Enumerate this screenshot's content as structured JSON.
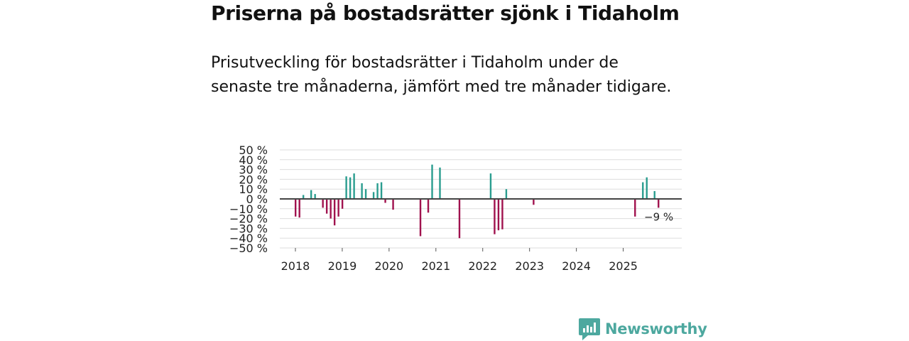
{
  "headline": "Priserna på bostadsrätter sjönk i Tidaholm",
  "subtitle": "Prisutveckling för bostadsrätter i Tidaholm under de senaste tre månaderna, jämfört med tre månader tidigare.",
  "brand": {
    "name": "Newsworthy",
    "color": "#4da89f"
  },
  "colors": {
    "positive": "#2a9d8f",
    "negative": "#a0124e",
    "grid": "#dddddd",
    "zero": "#444444"
  },
  "chart_data": {
    "type": "bar",
    "title": "Priserna på bostadsrätter sjönk i Tidaholm",
    "ylabel": "",
    "xlabel": "",
    "unit": "%",
    "ylim": [
      -50,
      50
    ],
    "yticks": [
      {
        "value": 50,
        "label": "50 %"
      },
      {
        "value": 40,
        "label": "40 %"
      },
      {
        "value": 30,
        "label": "30 %"
      },
      {
        "value": 20,
        "label": "20 %"
      },
      {
        "value": 10,
        "label": "10 %"
      },
      {
        "value": 0,
        "label": "0 %"
      },
      {
        "value": -10,
        "label": "−10 %"
      },
      {
        "value": -20,
        "label": "−20 %"
      },
      {
        "value": -30,
        "label": "−30 %"
      },
      {
        "value": -40,
        "label": "−40 %"
      },
      {
        "value": -50,
        "label": "−50 %"
      }
    ],
    "xlim": [
      "2017-09",
      "2026-04"
    ],
    "xticks": [
      {
        "date": "2018-01",
        "label": "2018"
      },
      {
        "date": "2019-01",
        "label": "2019"
      },
      {
        "date": "2020-01",
        "label": "2020"
      },
      {
        "date": "2021-01",
        "label": "2021"
      },
      {
        "date": "2022-01",
        "label": "2022"
      },
      {
        "date": "2023-01",
        "label": "2023"
      },
      {
        "date": "2024-01",
        "label": "2024"
      },
      {
        "date": "2025-01",
        "label": "2025"
      }
    ],
    "series": [
      {
        "name": "Prisutveckling",
        "points": [
          {
            "date": "2018-01",
            "value": -18
          },
          {
            "date": "2018-02",
            "value": -19
          },
          {
            "date": "2018-03",
            "value": 4
          },
          {
            "date": "2018-05",
            "value": 9
          },
          {
            "date": "2018-06",
            "value": 5
          },
          {
            "date": "2018-08",
            "value": -9
          },
          {
            "date": "2018-09",
            "value": -15
          },
          {
            "date": "2018-10",
            "value": -20
          },
          {
            "date": "2018-11",
            "value": -27
          },
          {
            "date": "2018-12",
            "value": -18
          },
          {
            "date": "2019-01",
            "value": -10
          },
          {
            "date": "2019-02",
            "value": 23
          },
          {
            "date": "2019-03",
            "value": 22
          },
          {
            "date": "2019-04",
            "value": 26
          },
          {
            "date": "2019-06",
            "value": 16
          },
          {
            "date": "2019-07",
            "value": 10
          },
          {
            "date": "2019-09",
            "value": 7
          },
          {
            "date": "2019-10",
            "value": 16
          },
          {
            "date": "2019-11",
            "value": 17
          },
          {
            "date": "2019-12",
            "value": -4
          },
          {
            "date": "2020-02",
            "value": -11
          },
          {
            "date": "2020-09",
            "value": -38
          },
          {
            "date": "2020-11",
            "value": -14
          },
          {
            "date": "2020-12",
            "value": 35
          },
          {
            "date": "2021-02",
            "value": 32
          },
          {
            "date": "2021-07",
            "value": -40
          },
          {
            "date": "2022-03",
            "value": 26
          },
          {
            "date": "2022-04",
            "value": -36
          },
          {
            "date": "2022-05",
            "value": -32
          },
          {
            "date": "2022-06",
            "value": -31
          },
          {
            "date": "2022-07",
            "value": 10
          },
          {
            "date": "2023-02",
            "value": -6
          },
          {
            "date": "2025-04",
            "value": -18
          },
          {
            "date": "2025-06",
            "value": 17
          },
          {
            "date": "2025-07",
            "value": 22
          },
          {
            "date": "2025-09",
            "value": 8
          },
          {
            "date": "2025-10",
            "value": -9
          }
        ]
      }
    ],
    "annotations": [
      {
        "date": "2025-10",
        "text": "−9 %"
      }
    ]
  }
}
